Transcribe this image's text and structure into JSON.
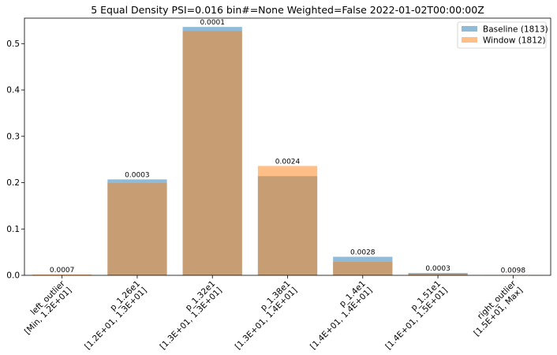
{
  "chart_data": {
    "type": "bar",
    "title": "5 Equal Density PSI=0.016 bin#=None Weighted=False 2022-01-02T00:00:00Z",
    "xlabel": "",
    "ylabel": "",
    "ylim": [
      0,
      0.555
    ],
    "yticks": [
      "0.0",
      "0.1",
      "0.2",
      "0.3",
      "0.4",
      "0.5"
    ],
    "grid": false,
    "legend_position": "top-right",
    "categories": [
      [
        "left_outlier",
        "[Min, 1.2E+01]"
      ],
      [
        "p_1.26e1",
        "[1.2E+01, 1.3E+01]"
      ],
      [
        "p_1.32e1",
        "[1.3E+01, 1.3E+01]"
      ],
      [
        "p_1.38e1",
        "[1.3E+01, 1.4E+01]"
      ],
      [
        "p_1.4e1",
        "[1.4E+01, 1.4E+01]"
      ],
      [
        "p_1.51e1",
        "[1.4E+01, 1.5E+01]"
      ],
      [
        "right_outlier",
        "[1.5E+01, Max]"
      ]
    ],
    "series": [
      {
        "name": "Baseline (1813)",
        "color": "#1f77b4",
        "values": [
          0.0006,
          0.207,
          0.536,
          0.214,
          0.04,
          0.005,
          0.0
        ]
      },
      {
        "name": "Window (1812)",
        "color": "#ff7f0e",
        "values": [
          0.0018,
          0.199,
          0.527,
          0.236,
          0.029,
          0.004,
          0.0005
        ]
      }
    ],
    "data_labels": [
      "0.0007",
      "0.0003",
      "0.0001",
      "0.0024",
      "0.0028",
      "0.0003",
      "0.0098"
    ]
  }
}
